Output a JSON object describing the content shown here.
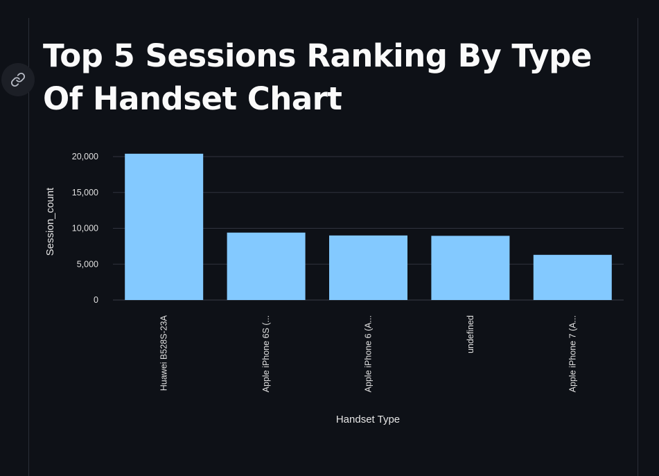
{
  "page": {
    "title": "Top 5 Sessions Ranking By Type Of Handset Chart"
  },
  "icons": {
    "anchor": "link-icon"
  },
  "colors": {
    "background": "#0e1117",
    "bar": "#83c9ff",
    "text": "#fafafa",
    "grid": "#31333f"
  },
  "chart_data": {
    "type": "bar",
    "categories": [
      "Huawei B528S-23A",
      "Apple iPhone 6S (...",
      "Apple iPhone 6 (A...",
      "undefined",
      "Apple iPhone 7 (A..."
    ],
    "values": [
      20400,
      9400,
      9000,
      8950,
      6300
    ],
    "xlabel": "Handset Type",
    "ylabel": "Session_count",
    "ylim": [
      0,
      20000
    ],
    "yticks": [
      0,
      5000,
      10000,
      15000,
      20000
    ],
    "ytick_labels": [
      "0",
      "5,000",
      "10,000",
      "15,000",
      "20,000"
    ],
    "grid": true,
    "legend": "none"
  }
}
